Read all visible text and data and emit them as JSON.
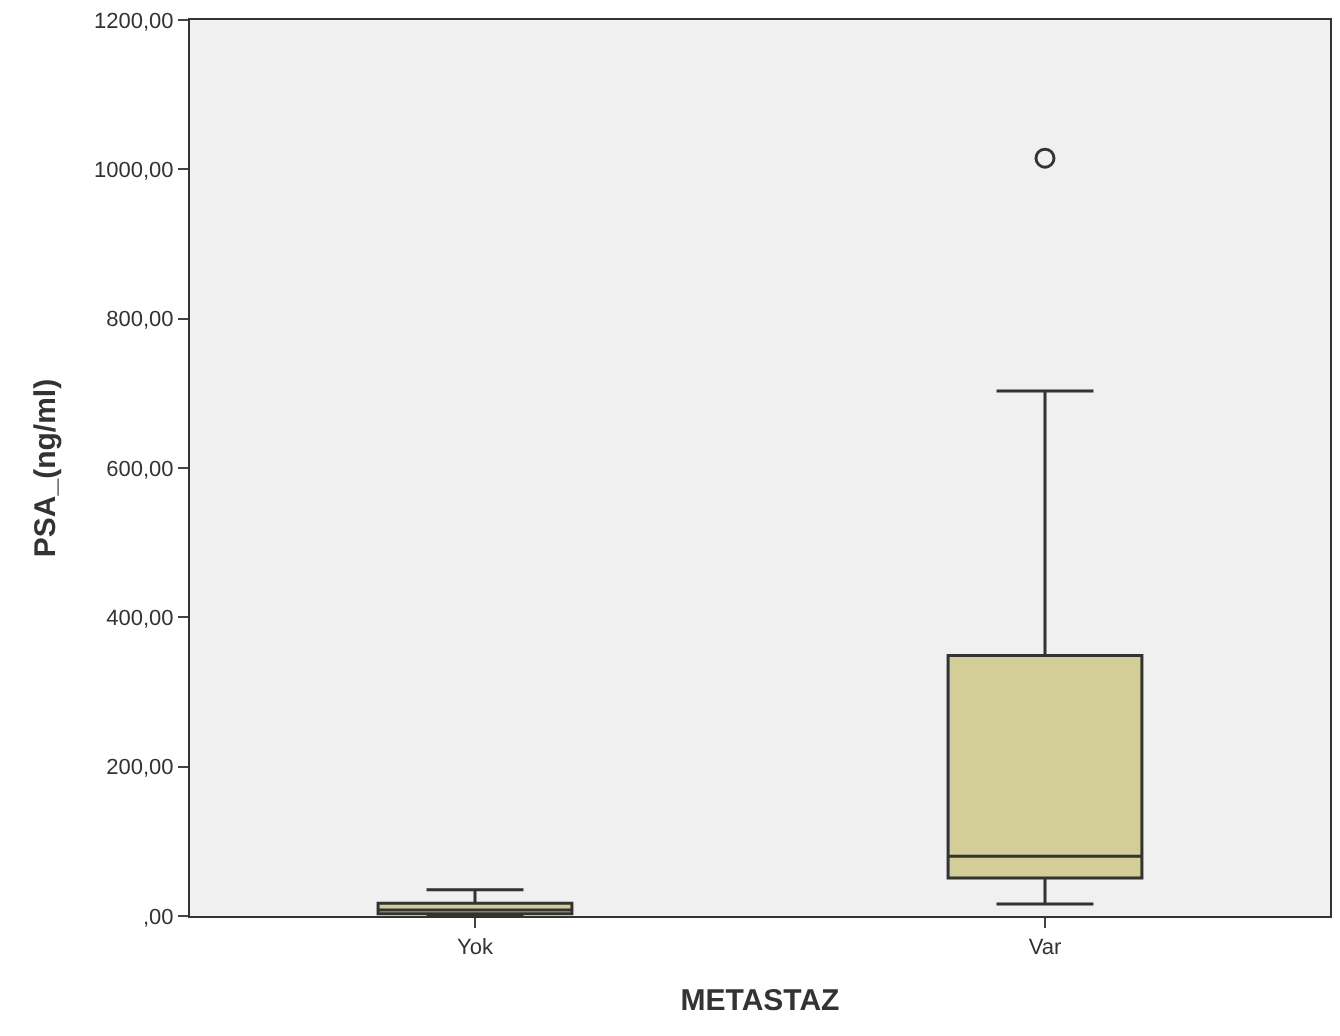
{
  "chart_data": {
    "type": "box",
    "xlabel": "METASTAZ",
    "ylabel": "PSA_(ng/ml)",
    "categories": [
      "Yok",
      "Var"
    ],
    "boxes": [
      {
        "low": 0,
        "q1": 3,
        "median": 8,
        "q3": 17,
        "high": 35
      },
      {
        "low": 16,
        "q1": 51,
        "median": 80,
        "q3": 349,
        "high": 703,
        "outliers": [
          1015
        ]
      }
    ],
    "color": "#d3cd98",
    "ylim": [
      0,
      1200
    ],
    "yticks": [
      {
        "value": 0,
        "label": ",00"
      },
      {
        "value": 200,
        "label": "200,00"
      },
      {
        "value": 400,
        "label": "400,00"
      },
      {
        "value": 600,
        "label": "600,00"
      },
      {
        "value": 800,
        "label": "800,00"
      },
      {
        "value": 1000,
        "label": "1000,00"
      },
      {
        "value": 1200,
        "label": "1200,00"
      }
    ],
    "grid": false
  }
}
